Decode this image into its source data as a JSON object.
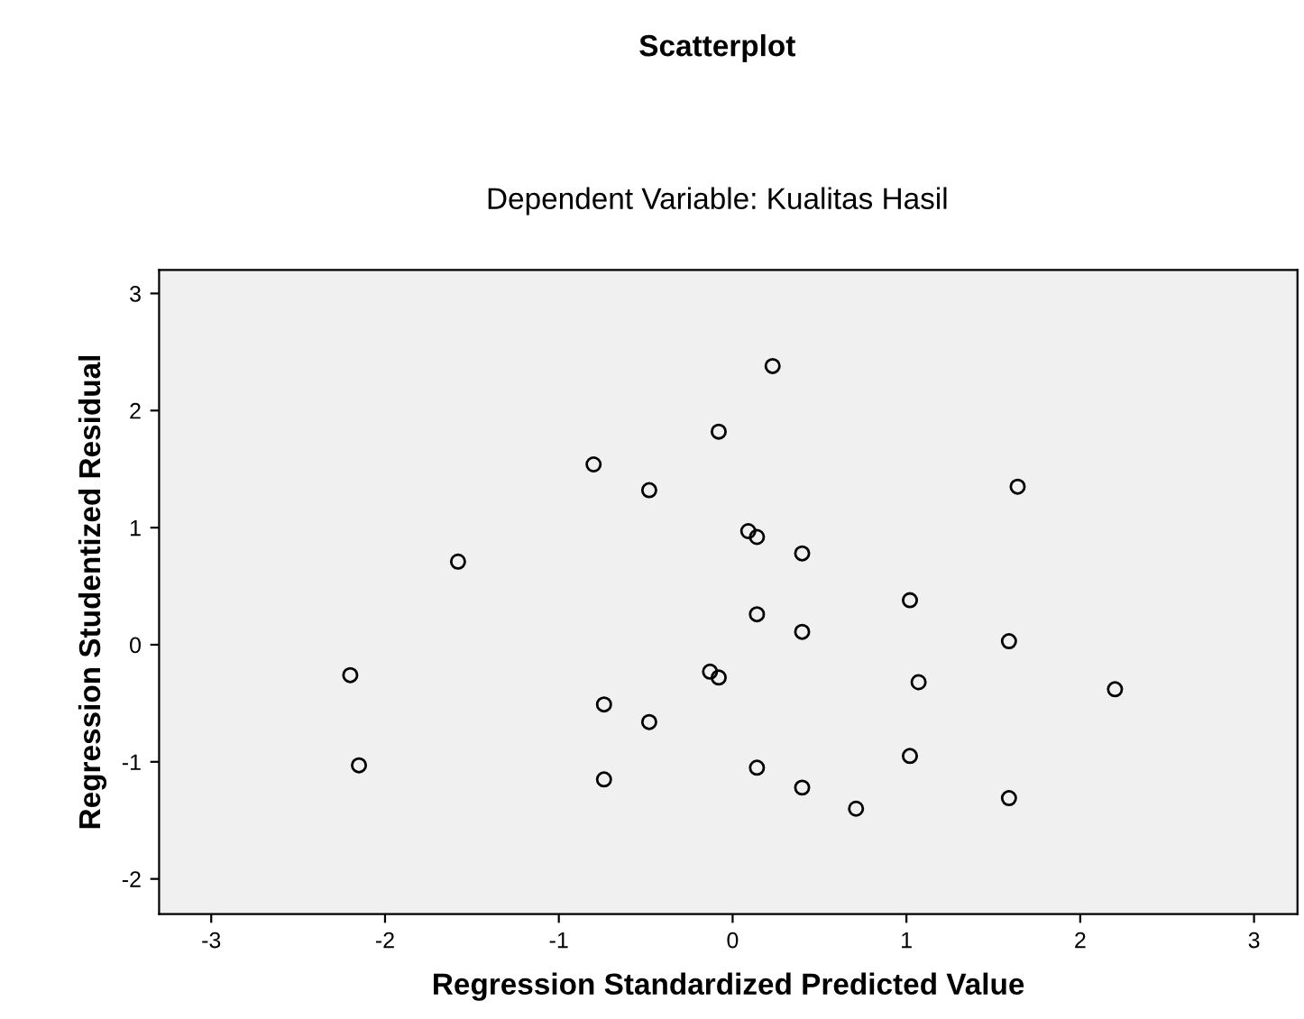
{
  "chart_data": {
    "type": "scatter",
    "title": "Scatterplot",
    "subtitle": "Dependent Variable: Kualitas Hasil",
    "xlabel": "Regression Standardized Predicted Value",
    "ylabel": "Regression Studentized Residual",
    "x": [
      0.23,
      -0.08,
      -0.8,
      -0.48,
      1.64,
      0.09,
      0.14,
      0.4,
      -1.58,
      1.02,
      0.14,
      0.4,
      1.59,
      -0.13,
      -0.08,
      -2.2,
      1.07,
      2.2,
      -0.74,
      -0.48,
      1.02,
      -2.15,
      0.14,
      -0.74,
      0.4,
      1.59,
      0.71
    ],
    "series": [
      {
        "color": "#000000",
        "values": [
          2.38,
          1.82,
          1.54,
          1.32,
          1.35,
          0.97,
          0.92,
          0.78,
          0.71,
          0.38,
          0.26,
          0.11,
          0.03,
          -0.23,
          -0.28,
          -0.26,
          -0.32,
          -0.38,
          -0.51,
          -0.66,
          -0.95,
          -1.03,
          -1.05,
          -1.15,
          -1.22,
          -1.31,
          -1.4
        ]
      }
    ],
    "xlim": [
      -3.3,
      3.25
    ],
    "ylim": [
      -2.3,
      3.2
    ],
    "xticks": [
      -3,
      -2,
      -1,
      0,
      1,
      2,
      3
    ],
    "yticks": [
      -2,
      -1,
      0,
      1,
      2,
      3
    ],
    "marker": "circle",
    "grid": false,
    "legend": false
  }
}
